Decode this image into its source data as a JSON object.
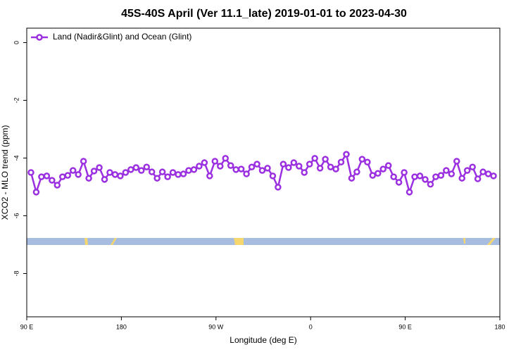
{
  "chart_data": {
    "type": "line",
    "title": "45S-40S April (Ver 11.1_late)   2019-01-01 to 2023-04-30",
    "xlabel": "Longitude (deg E)",
    "ylabel": "XCO2 - MLO trend (ppm)",
    "xlim": [
      90,
      540
    ],
    "ylim": [
      -9.5,
      0.5
    ],
    "xticks": [
      {
        "value": 90,
        "label": "90 E"
      },
      {
        "value": 180,
        "label": "180"
      },
      {
        "value": 270,
        "label": "90 W"
      },
      {
        "value": 360,
        "label": "0"
      },
      {
        "value": 450,
        "label": "90 E"
      },
      {
        "value": 540,
        "label": "180"
      }
    ],
    "yticks": [
      0,
      -2,
      -4,
      -6,
      -8
    ],
    "legend": "top-left",
    "x": [
      94,
      99,
      104,
      109,
      114,
      119,
      124,
      129,
      134,
      139,
      144,
      149,
      154,
      159,
      164,
      169,
      174,
      179,
      184,
      189,
      194,
      199,
      204,
      209,
      214,
      219,
      224,
      229,
      234,
      239,
      244,
      249,
      254,
      259,
      264,
      269,
      274,
      279,
      284,
      289,
      294,
      299,
      304,
      309,
      314,
      319,
      324,
      329,
      334,
      339,
      344,
      349,
      354,
      359,
      364,
      369,
      374,
      379,
      384,
      389,
      394,
      399,
      404,
      409,
      414,
      419,
      424,
      429,
      434,
      439,
      444,
      449,
      454,
      459,
      464,
      469,
      474,
      479,
      484,
      489,
      494,
      499,
      504,
      509,
      514,
      519,
      524,
      529,
      534
    ],
    "series": [
      {
        "name": "Land (Nadir&Glint) and Ocean (Glint)",
        "color": "#9b30e0",
        "values": [
          -4.5,
          -5.18,
          -4.65,
          -4.62,
          -4.77,
          -4.94,
          -4.65,
          -4.6,
          -4.43,
          -4.57,
          -4.11,
          -4.7,
          -4.45,
          -4.33,
          -4.74,
          -4.5,
          -4.57,
          -4.62,
          -4.5,
          -4.4,
          -4.33,
          -4.43,
          -4.31,
          -4.48,
          -4.7,
          -4.48,
          -4.65,
          -4.5,
          -4.57,
          -4.55,
          -4.43,
          -4.4,
          -4.28,
          -4.16,
          -4.62,
          -4.11,
          -4.28,
          -4.01,
          -4.26,
          -4.4,
          -4.38,
          -4.55,
          -4.31,
          -4.21,
          -4.43,
          -4.35,
          -4.62,
          -5.01,
          -4.21,
          -4.33,
          -4.16,
          -4.28,
          -4.5,
          -4.21,
          -4.01,
          -4.35,
          -4.04,
          -4.31,
          -4.38,
          -4.14,
          -3.87,
          -4.7,
          -4.48,
          -4.04,
          -4.14,
          -4.6,
          -4.53,
          -4.38,
          -4.26,
          -4.65,
          -4.84,
          -4.5,
          -5.18,
          -4.65,
          -4.62,
          -4.74,
          -4.91,
          -4.65,
          -4.6,
          -4.43,
          -4.55,
          -4.11,
          -4.7,
          -4.43,
          -4.31,
          -4.72,
          -4.48,
          -4.55,
          -4.62
        ]
      }
    ]
  }
}
